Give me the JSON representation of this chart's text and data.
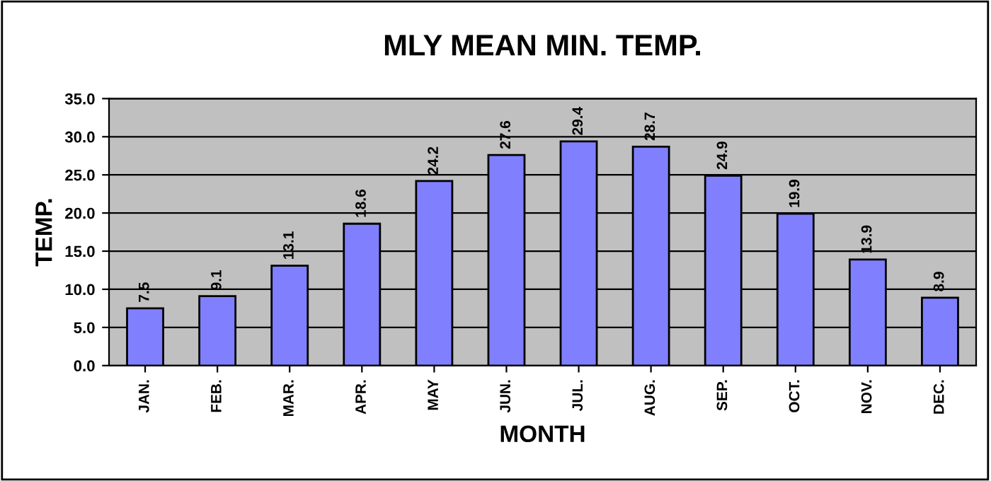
{
  "chart_data": {
    "type": "bar",
    "title": "MLY MEAN MIN. TEMP.",
    "xlabel": "MONTH",
    "ylabel": "TEMP.",
    "categories": [
      "JAN.",
      "FEB.",
      "MAR.",
      "APR.",
      "MAY",
      "JUN.",
      "JUL.",
      "AUG.",
      "SEP.",
      "OCT.",
      "NOV.",
      "DEC."
    ],
    "values": [
      7.5,
      9.1,
      13.1,
      18.6,
      24.2,
      27.6,
      29.4,
      28.7,
      24.9,
      19.9,
      13.9,
      8.9
    ],
    "color": "#8080ff",
    "ylim": [
      0,
      35
    ],
    "yticks": [
      {
        "value": 0,
        "label": "0.0"
      },
      {
        "value": 5,
        "label": "5.0"
      },
      {
        "value": 10,
        "label": "10.0"
      },
      {
        "value": 15,
        "label": "15.0"
      },
      {
        "value": 20,
        "label": "20.0"
      },
      {
        "value": 25,
        "label": "25.0"
      },
      {
        "value": 30,
        "label": "30.0"
      },
      {
        "value": 35,
        "label": "35.0"
      }
    ],
    "grid": "y",
    "data_labels": true,
    "legend": false
  }
}
